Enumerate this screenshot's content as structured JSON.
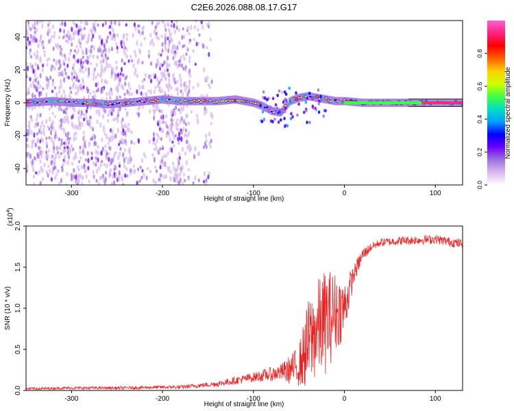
{
  "title": "C2E6.2026.088.08.17.G17",
  "chart_data": [
    {
      "type": "heatmap",
      "xlabel": "Height of straight line (km)",
      "ylabel": "Frequency (Hz)",
      "xlim": [
        -350,
        130
      ],
      "ylim": [
        -50,
        50
      ],
      "xticks": [
        -300,
        -200,
        -100,
        0,
        100
      ],
      "xtick_labels": [
        "-300",
        "-200",
        "-100",
        "0",
        "100"
      ],
      "yticks": [
        -40,
        -20,
        0,
        20,
        40
      ],
      "ytick_labels": [
        "-40",
        "-20",
        "0",
        "20",
        "40"
      ],
      "colorbar": {
        "label": "Normalized spectral amplitude",
        "range": [
          0,
          1
        ],
        "ticks": [
          0.0,
          0.2,
          0.4,
          0.6,
          0.8
        ],
        "tick_labels": [
          "0.0",
          "0.2",
          "0.4",
          "0.6",
          "0.8"
        ],
        "colors": [
          "#ffffff",
          "#d8b8f0",
          "#a070e0",
          "#6a00ff",
          "#0000ff",
          "#00a0ff",
          "#00e0c0",
          "#40ff40",
          "#d0ff00",
          "#ffd000",
          "#ff6000",
          "#ff0000",
          "#ff2080",
          "#ff60d0"
        ]
      },
      "ridge": {
        "x": [
          -350,
          -320,
          -300,
          -280,
          -260,
          -240,
          -220,
          -200,
          -180,
          -160,
          -140,
          -120,
          -100,
          -90,
          -80,
          -70,
          -60,
          -50,
          -40,
          -30,
          -20,
          -10,
          0,
          20,
          50,
          80,
          100,
          130
        ],
        "frequency": [
          0,
          1,
          0,
          0,
          -1,
          0,
          1,
          2,
          1,
          1,
          1,
          2,
          0,
          -2,
          -5,
          -6,
          1,
          3,
          4,
          3,
          2,
          1,
          1,
          0,
          0,
          0,
          0,
          0
        ]
      }
    },
    {
      "type": "line",
      "xlabel": "Height of straight line (km)",
      "ylabel": "SNR (10 * v/v)",
      "yscale_label": "(x10",
      "yscale_exp": "4",
      "yscale_suffix": ")",
      "xlim": [
        -350,
        130
      ],
      "ylim": [
        0,
        2.0
      ],
      "xticks": [
        -300,
        -200,
        -100,
        0,
        100
      ],
      "xtick_labels": [
        "-300",
        "-200",
        "-100",
        "0",
        "100"
      ],
      "yticks": [
        0,
        0.5,
        1.0,
        1.5,
        2.0
      ],
      "ytick_labels": [
        "0.0",
        "0.5",
        "1.0",
        "1.5",
        "2.0"
      ],
      "line_color": "#ee2222",
      "baseline": {
        "x": [
          -350,
          -300,
          -250,
          -200,
          -180,
          -160,
          -140,
          -120,
          -100,
          -80,
          -70,
          -60,
          -50,
          -40,
          -30,
          -20,
          -10,
          0,
          10,
          20,
          30,
          40,
          60,
          80,
          100,
          120,
          130
        ],
        "y": [
          0.02,
          0.03,
          0.03,
          0.04,
          0.04,
          0.06,
          0.08,
          0.12,
          0.16,
          0.2,
          0.22,
          0.25,
          0.3,
          0.55,
          0.75,
          0.85,
          0.95,
          1.0,
          1.4,
          1.65,
          1.75,
          1.8,
          1.82,
          1.83,
          1.84,
          1.8,
          1.78
        ]
      },
      "noise": {
        "x": [
          -350,
          -200,
          -150,
          -100,
          -70,
          -50,
          -40,
          -30,
          -20,
          -10,
          0,
          10,
          30,
          130
        ],
        "amplitude": [
          0.015,
          0.02,
          0.03,
          0.06,
          0.1,
          0.25,
          0.55,
          0.6,
          0.65,
          0.5,
          0.35,
          0.12,
          0.05,
          0.06
        ]
      }
    }
  ]
}
